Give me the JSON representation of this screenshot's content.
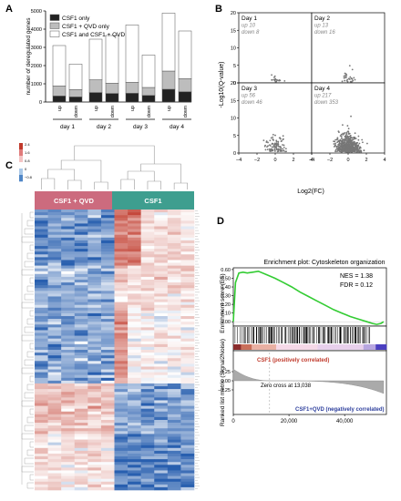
{
  "panels": {
    "A": {
      "letter": "A",
      "chart_data": {
        "type": "bar",
        "stacked": true,
        "ylabel": "number of deregulated genes",
        "ylim": [
          0,
          5000
        ],
        "yticks": [
          "0",
          "1000",
          "2000",
          "3000",
          "4000",
          "5000"
        ],
        "groups": [
          "day 1",
          "day 2",
          "day 3",
          "day 4"
        ],
        "bar_labels": [
          "up",
          "down",
          "up",
          "down",
          "up",
          "down",
          "up",
          "down"
        ],
        "legend": {
          "placement": "top-left",
          "entries": [
            "CSF1 only",
            "CSF1 + QVD only",
            "CSF1 and CSF1 + QVD"
          ]
        },
        "series": [
          {
            "name": "CSF1 only",
            "color": "#222222",
            "values": [
              330,
              280,
              520,
              470,
              480,
              360,
              700,
              560
            ]
          },
          {
            "name": "CSF1 + QVD only",
            "color": "#bdbdbd",
            "values": [
              550,
              400,
              700,
              560,
              600,
              440,
              1000,
              720
            ]
          },
          {
            "name": "CSF1 and CSF1 + QVD",
            "color": "#ffffff",
            "values": [
              2220,
              1400,
              2230,
              2620,
              3150,
              1780,
              3180,
              2620
            ]
          }
        ]
      }
    },
    "B": {
      "letter": "B",
      "chart_data": {
        "type": "scatter",
        "xlabel": "Log2(FC)",
        "ylabel": "-Log10(Q-value)",
        "xlim": [
          -4,
          4
        ],
        "ylim": [
          0,
          20
        ],
        "xticks": [
          "−4",
          "−2",
          "0",
          "2",
          "4"
        ],
        "yticks": [
          "0",
          "5",
          "10",
          "15",
          "20"
        ],
        "facets": [
          {
            "title": "Day 1",
            "up": "up 10",
            "down": "down 8",
            "n_points": 18
          },
          {
            "title": "Day 2",
            "up": "up 13",
            "down": "down 16",
            "n_points": 29
          },
          {
            "title": "Day 3",
            "up": "up 56",
            "down": "down 46",
            "n_points": 102
          },
          {
            "title": "Day 4",
            "up": "up 217",
            "down": "down 353",
            "n_points": 570
          }
        ]
      }
    },
    "C": {
      "letter": "C",
      "legend_ticks": [
        "2.4",
        "1.6",
        "0.8",
        "0",
        "−0.8"
      ],
      "groups": [
        {
          "label": "CSF1 + QVD",
          "color": "#cc6b7e"
        },
        {
          "label": "CSF1",
          "color": "#3e9e8f"
        }
      ]
    },
    "D": {
      "letter": "D",
      "title": "Enrichment plot: Cytoskeleton organization",
      "nes": "NES = 1.38",
      "fdr": "FDR = 0.12",
      "es_label": "Enrichment score (ES)",
      "rank_label": "Ranked list metric (Signal2Noise)",
      "pos_label": "CSF1 (positively correlated)",
      "neg_label": "CSF1+QVD (negatively correlated)",
      "zero_cross": "Zero cross at 13,038",
      "chart_data": {
        "type": "line",
        "series_color": "#33cc33",
        "es_yticks": [
          "0.60",
          "0.50",
          "0.40",
          "0.30",
          "0.20",
          "0.10",
          "0.00"
        ],
        "es_ylim": [
          -0.05,
          0.62
        ],
        "rank_yticks": [
          "0.25",
          "0.00",
          "−0.25"
        ],
        "xticks": [
          "0",
          "20,000",
          "40,000"
        ],
        "xlim": [
          0,
          55000
        ],
        "x": [
          0,
          800,
          2000,
          3500,
          5000,
          7000,
          9000,
          12000,
          15000,
          18000,
          21000,
          24000,
          27000,
          30000,
          33000,
          36000,
          39000,
          42000,
          45000,
          48000,
          50000,
          51500,
          53000,
          54000
        ],
        "y": [
          0.0,
          0.45,
          0.56,
          0.57,
          0.56,
          0.57,
          0.58,
          0.54,
          0.5,
          0.45,
          0.4,
          0.34,
          0.29,
          0.24,
          0.19,
          0.14,
          0.1,
          0.06,
          0.03,
          0.0,
          -0.02,
          -0.03,
          -0.02,
          0.0
        ]
      }
    }
  }
}
